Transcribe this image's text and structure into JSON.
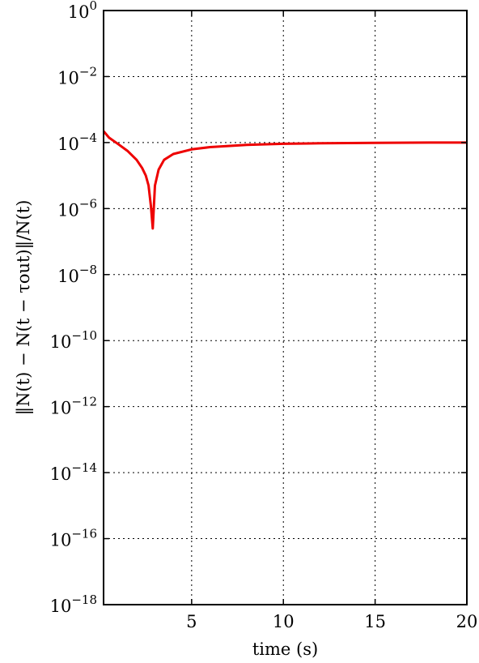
{
  "chart_data": {
    "type": "line",
    "title": "",
    "xlabel": "time (s)",
    "ylabel": "‖N(t) − N(t − τout)‖/N(t)",
    "x_scale": "linear",
    "y_scale": "log",
    "xlim": [
      0.2,
      20
    ],
    "ylim": [
      1e-18,
      1
    ],
    "grid": true,
    "legend": "none",
    "x_ticks": [
      {
        "value": 5,
        "label": "5"
      },
      {
        "value": 10,
        "label": "10"
      },
      {
        "value": 15,
        "label": "15"
      },
      {
        "value": 20,
        "label": "20"
      }
    ],
    "y_ticks": [
      {
        "value": 1.0,
        "base": "10",
        "exp": "0"
      },
      {
        "value": 0.01,
        "base": "10",
        "exp": "−2"
      },
      {
        "value": 0.0001,
        "base": "10",
        "exp": "−4"
      },
      {
        "value": 1e-06,
        "base": "10",
        "exp": "−6"
      },
      {
        "value": 1e-08,
        "base": "10",
        "exp": "−8"
      },
      {
        "value": 1e-10,
        "base": "10",
        "exp": "−10"
      },
      {
        "value": 1e-12,
        "base": "10",
        "exp": "−12"
      },
      {
        "value": 1e-14,
        "base": "10",
        "exp": "−14"
      },
      {
        "value": 1e-16,
        "base": "10",
        "exp": "−16"
      },
      {
        "value": 1e-18,
        "base": "10",
        "exp": "−18"
      }
    ],
    "series": [
      {
        "color": "#ee0000",
        "x": [
          0.2,
          0.5,
          1.0,
          1.5,
          2.0,
          2.3,
          2.5,
          2.65,
          2.78,
          2.88,
          3.0,
          3.2,
          3.5,
          4.0,
          5.0,
          6.0,
          8.0,
          10.0,
          12.0,
          15.0,
          18.0,
          20.0
        ],
        "y": [
          0.00022,
          0.00014,
          9e-05,
          5.6e-05,
          3e-05,
          1.7e-05,
          1e-05,
          5e-06,
          1.2e-06,
          2.5e-07,
          5e-06,
          1.5e-05,
          3e-05,
          4.5e-05,
          6.2e-05,
          7.3e-05,
          8.5e-05,
          9.2e-05,
          9.5e-05,
          9.8e-05,
          0.0001,
          0.0001
        ]
      }
    ]
  }
}
